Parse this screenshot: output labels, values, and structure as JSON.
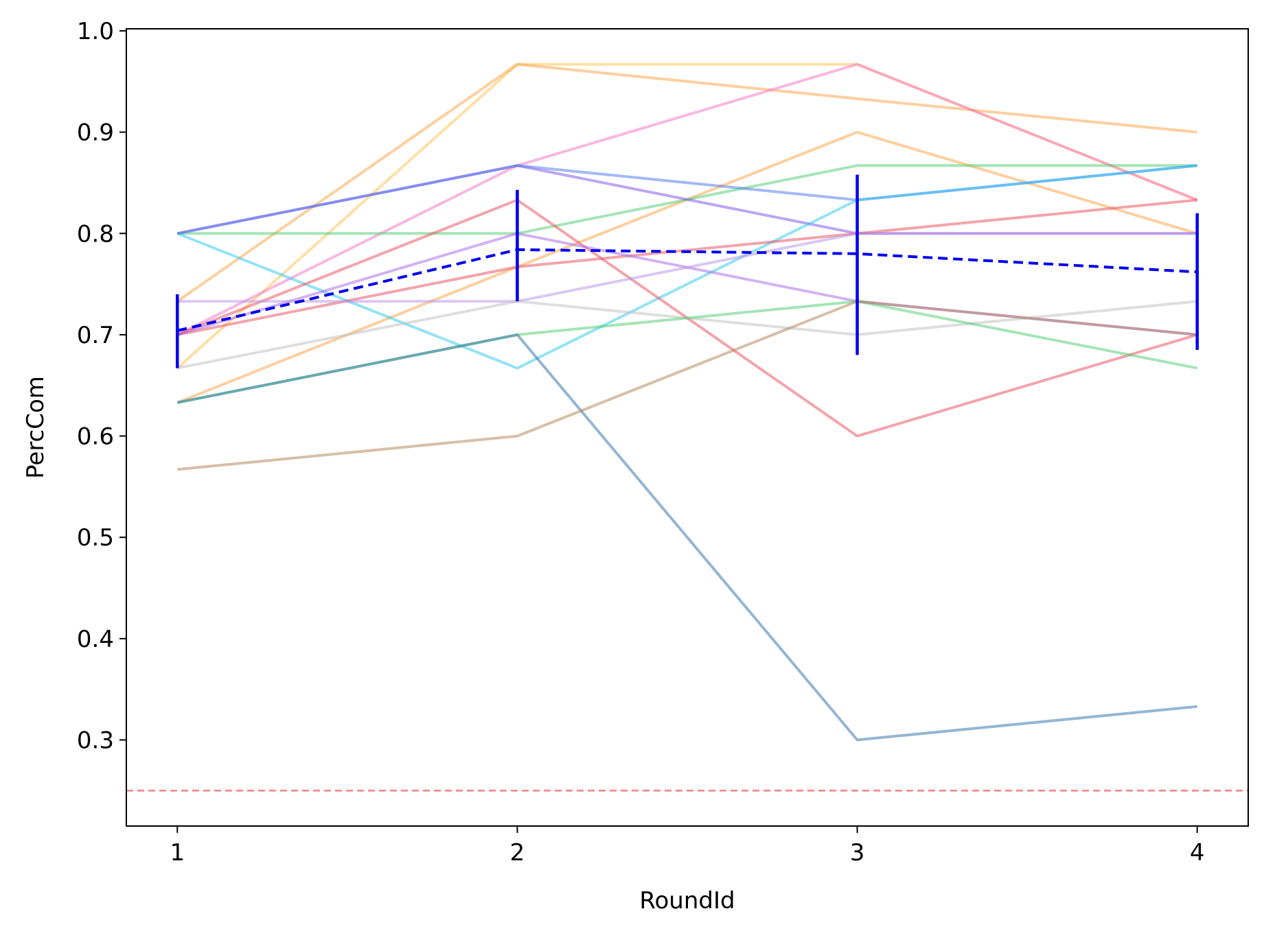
{
  "chart_data": {
    "type": "line",
    "title": "",
    "xlabel": "RoundId",
    "ylabel": "PercCom",
    "x": [
      1,
      2,
      3,
      4
    ],
    "xticks": [
      "1",
      "2",
      "3",
      "4"
    ],
    "yticks": [
      "0.3",
      "0.4",
      "0.5",
      "0.6",
      "0.7",
      "0.8",
      "0.9",
      "1.0"
    ],
    "xlim": [
      0.85,
      4.15
    ],
    "ylim": [
      0.215,
      1.002
    ],
    "grid": false,
    "legend": "none",
    "series": [
      {
        "color": "#FFC04D",
        "values": [
          0.667,
          0.967,
          0.967,
          0.833
        ]
      },
      {
        "color": "#FF9F40",
        "values": [
          0.733,
          0.967,
          0.933,
          0.9
        ]
      },
      {
        "color": "#F472C8",
        "values": [
          0.7,
          0.867,
          0.967,
          0.833
        ]
      },
      {
        "color": "#FF9F40",
        "values": [
          0.633,
          0.767,
          0.9,
          0.8
        ]
      },
      {
        "color": "#4CCB6E",
        "values": [
          0.8,
          0.8,
          0.867,
          0.867
        ]
      },
      {
        "color": "#7A4FE8",
        "values": [
          0.8,
          0.867,
          0.8,
          0.8
        ]
      },
      {
        "color": "#4B74F0",
        "values": [
          0.8,
          0.867,
          0.833,
          0.867
        ]
      },
      {
        "color": "#2AC8F0",
        "values": [
          0.8,
          0.667,
          0.833,
          0.867
        ]
      },
      {
        "color": "#E84A5A",
        "values": [
          0.7,
          0.833,
          0.6,
          0.7
        ]
      },
      {
        "color": "#E84A5A",
        "values": [
          0.7,
          0.767,
          0.8,
          0.833
        ]
      },
      {
        "color": "#A865E8",
        "values": [
          0.7,
          0.8,
          0.733,
          0.7
        ]
      },
      {
        "color": "#B88FE8",
        "values": [
          0.733,
          0.733,
          0.8,
          0.8
        ]
      },
      {
        "color": "#BDBDBD",
        "values": [
          0.667,
          0.733,
          0.7,
          0.733
        ]
      },
      {
        "color": "#4CCB6E",
        "values": [
          0.633,
          0.7,
          0.733,
          0.667
        ]
      },
      {
        "color": "#2A6EA8",
        "values": [
          0.633,
          0.7,
          0.3,
          0.333
        ]
      },
      {
        "color": "#B08150",
        "values": [
          0.567,
          0.6,
          0.733,
          0.7
        ]
      }
    ],
    "mean": {
      "color": "#0000F0",
      "values": [
        0.704,
        0.784,
        0.78,
        0.762
      ],
      "err_low": [
        0.667,
        0.733,
        0.68,
        0.685
      ],
      "err_high": [
        0.74,
        0.843,
        0.858,
        0.82
      ]
    },
    "reference_line": {
      "y": 0.25,
      "color": "#F08080",
      "style": "dashed"
    }
  }
}
